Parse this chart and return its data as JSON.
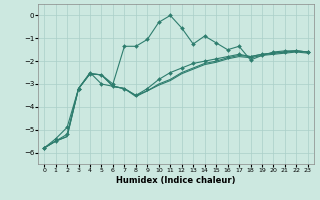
{
  "xlabel": "Humidex (Indice chaleur)",
  "x_values": [
    0,
    1,
    2,
    3,
    4,
    5,
    6,
    7,
    8,
    9,
    10,
    11,
    12,
    13,
    14,
    15,
    16,
    17,
    18,
    19,
    20,
    21,
    22,
    23
  ],
  "line1": [
    -5.8,
    -5.5,
    -5.2,
    -3.2,
    -2.5,
    -3.0,
    -3.1,
    -3.2,
    -3.5,
    -3.2,
    -2.8,
    -2.5,
    -2.3,
    -2.1,
    -2.0,
    -1.9,
    -1.8,
    -1.7,
    -1.8,
    -1.7,
    -1.65,
    -1.6,
    -1.55,
    -1.6
  ],
  "line2": [
    -5.8,
    -5.4,
    -4.9,
    -3.2,
    -2.55,
    -2.6,
    -3.0,
    -1.35,
    -1.35,
    -1.05,
    -0.3,
    -0.0,
    -0.55,
    -1.25,
    -0.9,
    -1.2,
    -1.5,
    -1.35,
    -1.95,
    -1.75,
    -1.6,
    -1.55,
    -1.55,
    -1.6
  ],
  "line3": [
    -5.8,
    -5.5,
    -5.3,
    -3.2,
    -2.55,
    -2.6,
    -3.1,
    -3.2,
    -3.5,
    -3.3,
    -3.0,
    -2.8,
    -2.5,
    -2.3,
    -2.1,
    -2.0,
    -1.85,
    -1.75,
    -1.8,
    -1.7,
    -1.65,
    -1.6,
    -1.55,
    -1.6
  ],
  "line4": [
    -5.8,
    -5.5,
    -5.3,
    -3.2,
    -2.55,
    -2.6,
    -3.1,
    -3.2,
    -3.55,
    -3.3,
    -3.05,
    -2.85,
    -2.55,
    -2.35,
    -2.15,
    -2.05,
    -1.9,
    -1.8,
    -1.85,
    -1.75,
    -1.7,
    -1.65,
    -1.6,
    -1.65
  ],
  "line_color": "#2e7d6e",
  "bg_color": "#cce8e0",
  "grid_color": "#aacfc8",
  "ylim": [
    -6.5,
    0.5
  ],
  "xlim": [
    -0.5,
    23.5
  ],
  "yticks": [
    0,
    -1,
    -2,
    -3,
    -4,
    -5,
    -6
  ],
  "xticks": [
    0,
    1,
    2,
    3,
    4,
    5,
    6,
    7,
    8,
    9,
    10,
    11,
    12,
    13,
    14,
    15,
    16,
    17,
    18,
    19,
    20,
    21,
    22,
    23
  ],
  "marker": "D",
  "markersize": 2.0,
  "linewidth": 0.8
}
